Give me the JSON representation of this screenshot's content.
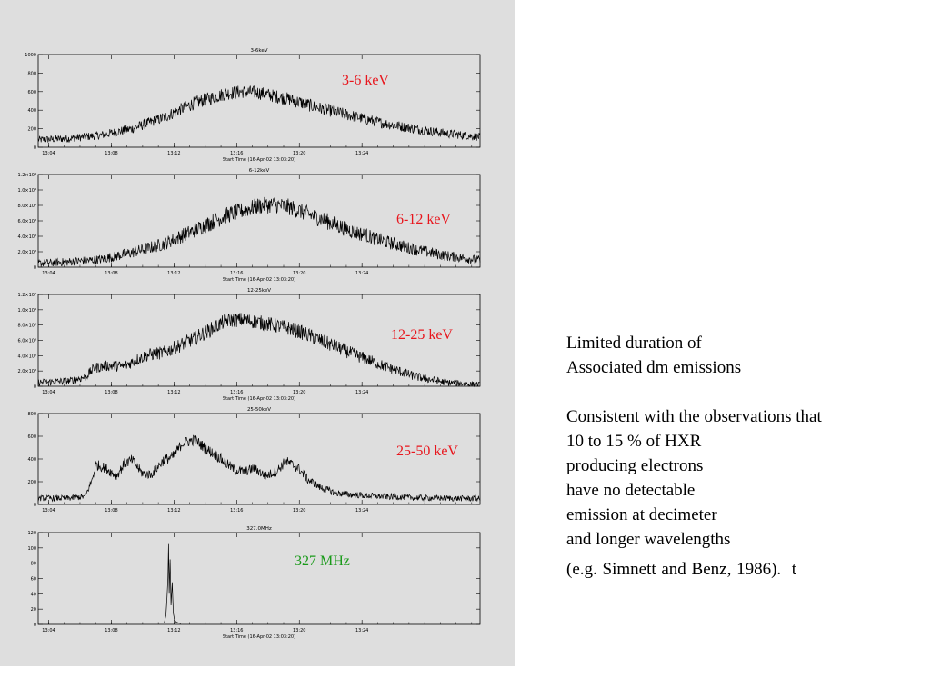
{
  "slide": {
    "notes": {
      "line1": "Limited duration of",
      "line2": "Associated dm emissions",
      "para_lines": [
        "Consistent with the observations that",
        "10 to 15 % of HXR",
        "producing electrons",
        "have no detectable",
        "emission at decimeter",
        "and longer wavelengths"
      ],
      "reference": "(e.g. Simnett and Benz, 1986).",
      "trailing": "t"
    }
  },
  "colors": {
    "panel_bg": "#dedede",
    "xray_label": "#e8161d",
    "radio_label": "#1a9a1a",
    "trace": "#000000"
  },
  "chart_data": [
    {
      "type": "line",
      "title": "3-6keV",
      "annotation": "3-6 keV",
      "annotation_color": "#e8161d",
      "xlabel": "Start Time (16-Apr-02 13:03:20)",
      "x_ticks": [
        "13:04",
        "13:08",
        "13:12",
        "13:16",
        "13:20",
        "13:24"
      ],
      "x_unit": "minutes after 13:03:20",
      "xlim": [
        0,
        28.2
      ],
      "ylim": [
        0,
        1000
      ],
      "y_ticks": [
        "0",
        "200",
        "400",
        "600",
        "800",
        "1000"
      ],
      "y_tick_values": [
        0,
        200,
        400,
        600,
        800,
        1000
      ],
      "series_x": [
        0,
        2,
        4,
        6,
        8,
        10,
        12,
        13,
        14,
        16,
        18,
        20,
        22,
        24,
        26,
        28.2
      ],
      "series_y": [
        80,
        95,
        130,
        200,
        320,
        480,
        580,
        600,
        590,
        520,
        420,
        340,
        260,
        200,
        150,
        110
      ],
      "noise": 60
    },
    {
      "type": "line",
      "title": "6-12keV",
      "annotation": "6-12 keV",
      "annotation_color": "#e8161d",
      "xlabel": "Start Time (16-Apr-02 13:03:20)",
      "x_ticks": [
        "13:04",
        "13:08",
        "13:12",
        "13:16",
        "13:20",
        "13:24"
      ],
      "x_unit": "minutes after 13:03:20",
      "xlim": [
        0,
        28.2
      ],
      "ylim": [
        0,
        12000
      ],
      "y_ticks": [
        "0",
        "2.0×10³",
        "4.0×10³",
        "6.0×10³",
        "8.0×10³",
        "1.0×10⁴",
        "1.2×10⁴"
      ],
      "y_tick_values": [
        0,
        2000,
        4000,
        6000,
        8000,
        10000,
        12000
      ],
      "series_x": [
        0,
        2,
        4,
        6,
        8,
        10,
        12,
        14,
        15,
        16,
        18,
        20,
        22,
        24,
        26,
        28.2
      ],
      "series_y": [
        500,
        700,
        1000,
        1900,
        3000,
        4800,
        6700,
        7900,
        8100,
        7800,
        6300,
        4700,
        3400,
        2300,
        1500,
        900
      ],
      "noise": 900
    },
    {
      "type": "line",
      "title": "12-25keV",
      "annotation": "12-25 keV",
      "annotation_color": "#e8161d",
      "xlabel": "Start Time (16-Apr-02 13:03:20)",
      "x_ticks": [
        "13:04",
        "13:08",
        "13:12",
        "13:16",
        "13:20",
        "13:24"
      ],
      "x_unit": "minutes after 13:03:20",
      "xlim": [
        0,
        28.2
      ],
      "ylim": [
        0,
        12000
      ],
      "y_ticks": [
        "0",
        "2.0×10³",
        "4.0×10³",
        "6.0×10³",
        "8.0×10³",
        "1.0×10⁴",
        "1.2×10⁴"
      ],
      "y_tick_values": [
        0,
        2000,
        4000,
        6000,
        8000,
        10000,
        12000
      ],
      "series_x": [
        0,
        2,
        3,
        3.6,
        4.5,
        5.5,
        6.2,
        7,
        8,
        9,
        10,
        11,
        12,
        13,
        14,
        15,
        16,
        17,
        18,
        20,
        22,
        24,
        26,
        28.2
      ],
      "series_y": [
        500,
        700,
        1200,
        2400,
        2700,
        2600,
        3400,
        4100,
        4400,
        5300,
        6300,
        7400,
        8600,
        8700,
        8400,
        8000,
        7600,
        6900,
        6000,
        4300,
        2700,
        1300,
        500,
        200
      ],
      "noise": 800
    },
    {
      "type": "line",
      "title": "25-50keV",
      "annotation": "25-50 keV",
      "annotation_color": "#e8161d",
      "xlabel": "",
      "x_ticks": [
        "13:04",
        "13:08",
        "13:12",
        "13:16",
        "13:20",
        "13:24"
      ],
      "x_unit": "minutes after 13:03:20",
      "xlim": [
        0,
        28.2
      ],
      "ylim": [
        0,
        800
      ],
      "y_ticks": [
        "0",
        "200",
        "400",
        "600",
        "800"
      ],
      "y_tick_values": [
        0,
        200,
        400,
        600,
        800
      ],
      "series_x": [
        0,
        2,
        3,
        3.4,
        3.7,
        4.3,
        5,
        5.5,
        6,
        6.6,
        7.2,
        8,
        8.6,
        9.2,
        10,
        10.8,
        11.4,
        12,
        12.6,
        13.2,
        13.8,
        14.5,
        15.2,
        15.8,
        16.6,
        17.2,
        18,
        19,
        20,
        22,
        24,
        26,
        28.2
      ],
      "series_y": [
        55,
        55,
        70,
        200,
        350,
        320,
        250,
        360,
        390,
        280,
        260,
        390,
        420,
        540,
        570,
        480,
        430,
        360,
        300,
        290,
        320,
        250,
        290,
        380,
        320,
        220,
        150,
        100,
        85,
        70,
        60,
        55,
        50
      ],
      "noise": 40
    },
    {
      "type": "line",
      "title": "327.0MHz",
      "annotation": "327 MHz",
      "annotation_color": "#1a9a1a",
      "xlabel": "Start Time (16-Apr-02 13:03:20)",
      "x_ticks": [
        "13:04",
        "13:08",
        "13:12",
        "13:16",
        "13:20",
        "13:24"
      ],
      "x_unit": "minutes after 13:03:20",
      "xlim": [
        0,
        28.2
      ],
      "ylim": [
        0,
        120
      ],
      "y_ticks": [
        "0",
        "20",
        "40",
        "60",
        "80",
        "100",
        "120"
      ],
      "y_tick_values": [
        0,
        20,
        40,
        60,
        80,
        100,
        120
      ],
      "series_x": [
        8.05,
        8.15,
        8.22,
        8.28,
        8.32,
        8.36,
        8.42,
        8.48,
        8.55,
        8.62,
        8.7,
        8.8,
        8.95,
        9.1
      ],
      "series_y": [
        2,
        12,
        35,
        60,
        105,
        40,
        85,
        25,
        55,
        15,
        6,
        3,
        2,
        1
      ],
      "noise": 0
    }
  ]
}
